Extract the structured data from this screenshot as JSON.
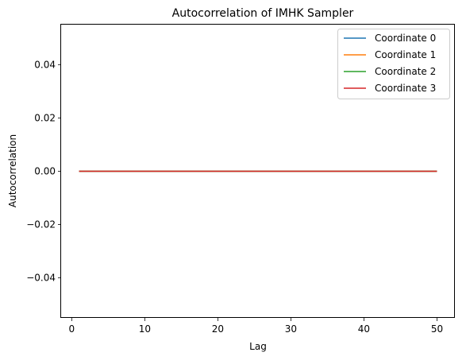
{
  "chart_data": {
    "type": "line",
    "title": "Autocorrelation of IMHK Sampler",
    "xlabel": "Lag",
    "ylabel": "Autocorrelation",
    "xlim": [
      -1.45,
      52.45
    ],
    "ylim": [
      -0.055,
      0.055
    ],
    "x_ticks": [
      0,
      10,
      20,
      30,
      40,
      50
    ],
    "y_ticks": [
      -0.04,
      -0.02,
      0.0,
      0.02,
      0.04
    ],
    "y_tick_labels": [
      "−0.04",
      "−0.02",
      "0.00",
      "0.02",
      "0.04"
    ],
    "x_start": 1,
    "x_end": 50,
    "grid": false,
    "legend_position": "top-right",
    "series": [
      {
        "name": "Coordinate 0",
        "color": "#1f77b4",
        "constant_value": 0.0
      },
      {
        "name": "Coordinate 1",
        "color": "#ff7f0e",
        "constant_value": 0.0
      },
      {
        "name": "Coordinate 2",
        "color": "#2ca02c",
        "constant_value": 0.0
      },
      {
        "name": "Coordinate 3",
        "color": "#d62728",
        "constant_value": 0.0
      }
    ]
  }
}
